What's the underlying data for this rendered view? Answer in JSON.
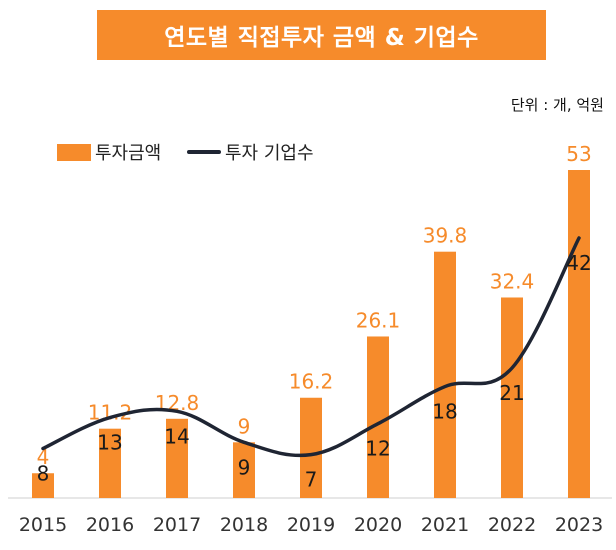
{
  "chart_data": {
    "type": "bar",
    "title": "연도별 직접투자 금액 & 기업수",
    "unit_note": "단위 : 개, 억원",
    "categories": [
      "2015",
      "2016",
      "2017",
      "2018",
      "2019",
      "2020",
      "2021",
      "2022",
      "2023"
    ],
    "series": [
      {
        "name": "투자금액",
        "type": "bar",
        "values": [
          4,
          11.2,
          12.8,
          9,
          16.2,
          26.1,
          39.8,
          32.4,
          53
        ],
        "color": "#F68B2B"
      },
      {
        "name": "투자 기업수",
        "type": "line",
        "values": [
          8,
          13,
          14,
          9,
          7,
          12,
          18,
          21,
          42
        ],
        "color": "#1F2533"
      }
    ],
    "bar_value_range": [
      0,
      53
    ],
    "line_value_range": [
      0,
      42
    ],
    "legend_position": "top-left",
    "grid": false
  }
}
